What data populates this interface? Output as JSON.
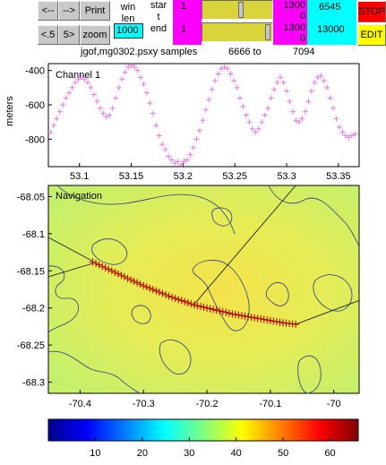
{
  "controls": {
    "btn_left": "<--",
    "btn_right": "-->",
    "btn_print": "Print",
    "btn_lt5": "<.5",
    "btn_gt5": "5>",
    "btn_zoom": "zoom",
    "winlen_label_1": "win",
    "winlen_label_2": "len",
    "winlen_value": "1000",
    "start_label_1": "star",
    "start_label_2": "t",
    "end_label": "end",
    "start_value": "1",
    "end_value": "1",
    "start_right_1": "1300",
    "start_right_2": "0",
    "end_right_1": "1300",
    "end_right_2": "0",
    "cyan_top": "6545",
    "cyan_bottom": "13000",
    "btn_stop": "STOP",
    "btn_edit": "EDIT",
    "start_slider_level": 0.55,
    "end_slider_level": 0.97
  },
  "status": {
    "file_text": "jgof,mg0302.psxy samples",
    "sample_from": "6666 to",
    "sample_to": "7094"
  },
  "colors": {
    "magenta": "#ff00ff",
    "cyan": "#00ffff",
    "red": "#ff0000",
    "yellow": "#ffff00",
    "slider": "#d8d43a",
    "channel_marker": "#e878e0",
    "track_marker": "#b40000"
  },
  "chart_data": [
    {
      "type": "scatter",
      "title": "Channel 1",
      "xlabel": "",
      "ylabel": "meters",
      "xlim": [
        53.07,
        53.37
      ],
      "ylim": [
        -960,
        -360
      ],
      "xticks": [
        "53.1",
        "53.15",
        "53.2",
        "53.25",
        "53.3",
        "53.35"
      ],
      "xtick_values": [
        53.1,
        53.15,
        53.2,
        53.25,
        53.3,
        53.35
      ],
      "yticks": [
        "-400",
        "-600",
        "-800"
      ],
      "ytick_values": [
        -400,
        -600,
        -800
      ],
      "marker": "+",
      "series": [
        {
          "x": [
            53.072,
            53.075,
            53.078,
            53.081,
            53.084,
            53.087,
            53.09,
            53.093,
            53.096,
            53.099,
            53.102,
            53.105,
            53.108,
            53.111,
            53.114,
            53.117,
            53.12,
            53.123,
            53.126,
            53.129,
            53.132,
            53.135,
            53.138,
            53.141,
            53.144,
            53.147,
            53.15,
            53.153,
            53.156,
            53.159,
            53.162,
            53.165,
            53.168,
            53.171,
            53.174,
            53.177,
            53.18,
            53.183,
            53.186,
            53.189,
            53.192,
            53.195,
            53.198,
            53.201,
            53.204,
            53.207,
            53.21,
            53.213,
            53.216,
            53.219,
            53.222,
            53.225,
            53.228,
            53.231,
            53.234,
            53.237,
            53.24,
            53.243,
            53.246,
            53.249,
            53.252,
            53.255,
            53.258,
            53.261,
            53.264,
            53.267,
            53.27,
            53.273,
            53.276,
            53.279,
            53.282,
            53.285,
            53.288,
            53.291,
            53.294,
            53.297,
            53.3,
            53.303,
            53.306,
            53.309,
            53.312,
            53.315,
            53.318,
            53.321,
            53.324,
            53.327,
            53.33,
            53.333,
            53.336,
            53.339,
            53.342,
            53.345,
            53.348,
            53.351,
            53.354,
            53.357,
            53.36,
            53.363,
            53.366
          ],
          "y": [
            -760,
            -720,
            -680,
            -640,
            -600,
            -560,
            -530,
            -500,
            -470,
            -450,
            -440,
            -450,
            -470,
            -500,
            -540,
            -580,
            -620,
            -650,
            -670,
            -660,
            -620,
            -560,
            -500,
            -450,
            -410,
            -380,
            -370,
            -380,
            -400,
            -440,
            -480,
            -530,
            -590,
            -650,
            -720,
            -780,
            -830,
            -860,
            -900,
            -920,
            -940,
            -930,
            -950,
            -930,
            -920,
            -890,
            -850,
            -800,
            -750,
            -690,
            -630,
            -570,
            -510,
            -460,
            -420,
            -390,
            -380,
            -390,
            -420,
            -460,
            -500,
            -560,
            -610,
            -660,
            -700,
            -740,
            -760,
            -740,
            -700,
            -660,
            -620,
            -560,
            -510,
            -470,
            -440,
            -470,
            -520,
            -580,
            -640,
            -690,
            -700,
            -680,
            -640,
            -580,
            -520,
            -470,
            -440,
            -430,
            -460,
            -500,
            -560,
            -620,
            -680,
            -730,
            -760,
            -780,
            -790,
            -780,
            -770
          ]
        }
      ]
    },
    {
      "type": "scatter",
      "title": "Navigation",
      "xlabel": "",
      "ylabel": "",
      "xlim": [
        -70.45,
        -69.96
      ],
      "ylim": [
        -68.315,
        -68.035
      ],
      "xticks": [
        "-70.4",
        "-70.3",
        "-70.2",
        "-70.1",
        "-70"
      ],
      "xtick_values": [
        -70.4,
        -70.3,
        -70.2,
        -70.1,
        -70.0
      ],
      "yticks": [
        "-68.05",
        "-68.1",
        "-68.15",
        "-68.2",
        "-68.25",
        "-68.3"
      ],
      "ytick_values": [
        -68.05,
        -68.1,
        -68.15,
        -68.2,
        -68.25,
        -68.3
      ],
      "marker": "+",
      "series": [
        {
          "x": [
            -70.38,
            -70.36,
            -70.34,
            -70.32,
            -70.3,
            -70.28,
            -70.26,
            -70.24,
            -70.22,
            -70.2,
            -70.18,
            -70.16,
            -70.14,
            -70.12,
            -70.1,
            -70.08,
            -70.06
          ],
          "y": [
            -68.138,
            -68.146,
            -68.154,
            -68.162,
            -68.17,
            -68.177,
            -68.184,
            -68.19,
            -68.196,
            -68.2,
            -68.204,
            -68.208,
            -68.211,
            -68.214,
            -68.217,
            -68.22,
            -68.222
          ]
        }
      ],
      "lines": [
        {
          "x": [
            -70.45,
            -70.38
          ],
          "y": [
            -68.105,
            -68.137
          ]
        },
        {
          "x": [
            -70.45,
            -70.38
          ],
          "y": [
            -68.158,
            -68.14
          ]
        },
        {
          "x": [
            -70.06,
            -69.96
          ],
          "y": [
            -68.222,
            -68.19
          ]
        },
        {
          "x": [
            -70.22,
            -70.06
          ],
          "y": [
            -68.195,
            -68.035
          ]
        }
      ],
      "colorbar": {
        "ticks": [
          "10",
          "20",
          "30",
          "40",
          "50",
          "60"
        ],
        "tick_values": [
          10,
          20,
          30,
          40,
          50,
          60
        ],
        "range": [
          0,
          66
        ]
      }
    }
  ]
}
